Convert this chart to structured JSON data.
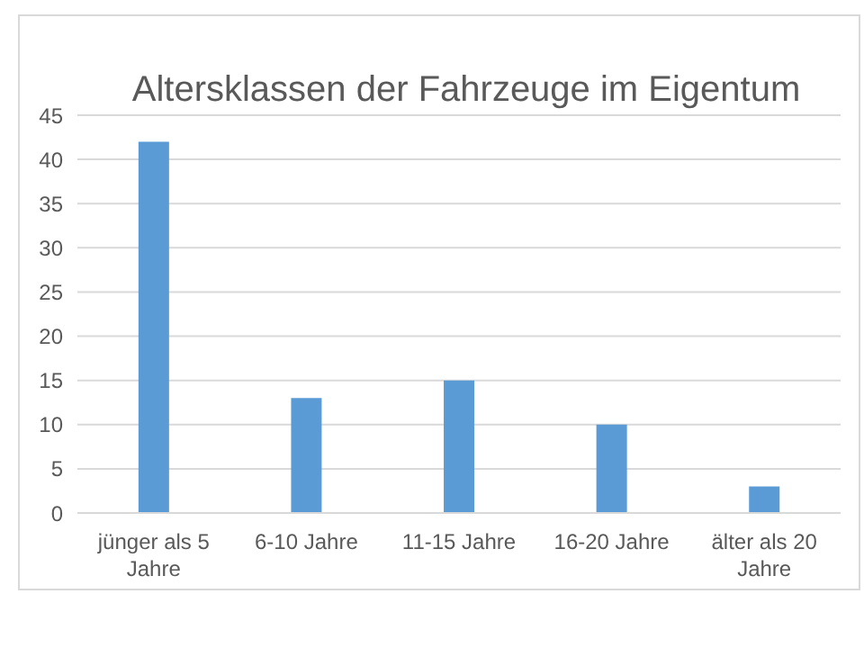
{
  "chart_data": {
    "type": "bar",
    "title": "Altersklassen der Fahrzeuge im Eigentum",
    "categories": [
      "jünger als 5 Jahre",
      "6-10 Jahre",
      "11-15 Jahre",
      "16-20 Jahre",
      "älter als 20 Jahre"
    ],
    "values": [
      42,
      13,
      15,
      10,
      3
    ],
    "color": "#5b9bd5",
    "ylim": [
      0,
      45
    ],
    "yticks": [
      0,
      5,
      10,
      15,
      20,
      25,
      30,
      35,
      40,
      45
    ],
    "grid": "y"
  }
}
